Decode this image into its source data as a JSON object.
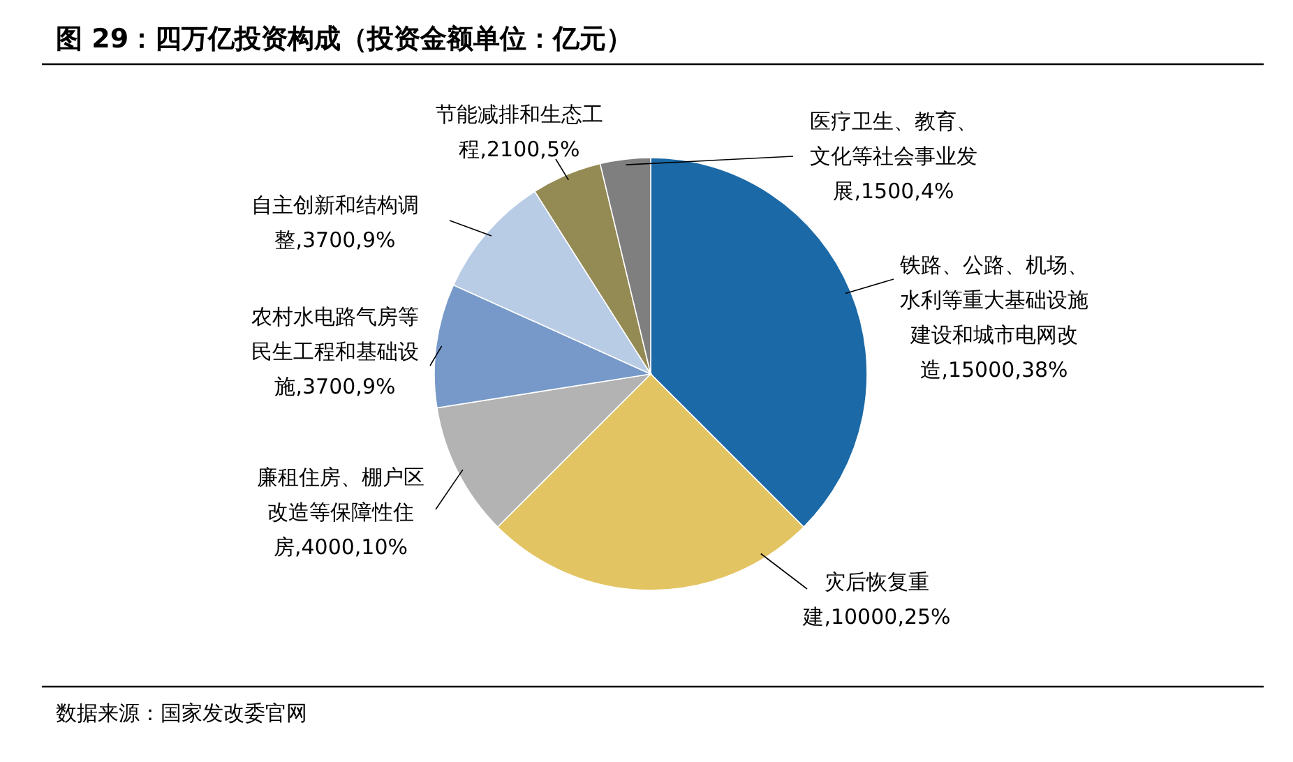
{
  "chart_data": {
    "type": "pie",
    "title": "图 29：四万亿投资构成（投资金额单位：亿元）",
    "categories": [
      "铁路、公路、机场、水利等重大基础设施建设和城市电网改造,15000,38%",
      "灾后恢复重建,10000,25%",
      "廉租住房、棚户区改造等保障性住房,4000,10%",
      "农村水电路气房等民生工程和基础设施,3700,9%",
      "自主创新和结构调整,3700,9%",
      "节能减排和生态工程,2100,5%",
      "医疗卫生、教育、文化等社会事业发展,1500,4%"
    ],
    "values": [
      37.5,
      25,
      10,
      9.25,
      9.25,
      5.25,
      3.75
    ],
    "colors": [
      "#1b69a6",
      "#e3c462",
      "#b3b3b3",
      "#7699c9",
      "#b9cce6",
      "#948a54",
      "#7f7f7f"
    ],
    "annotations": [
      "数据来源：国家发改委官网"
    ]
  }
}
